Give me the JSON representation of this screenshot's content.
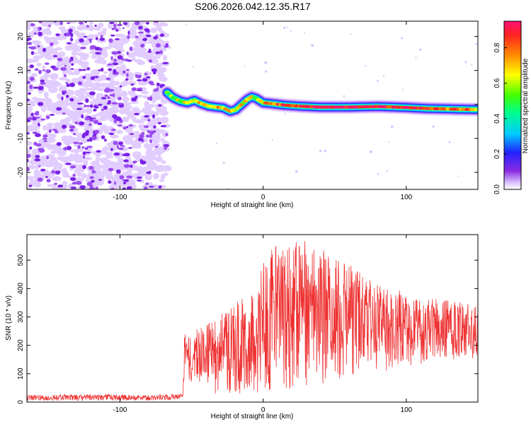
{
  "chart_data": [
    {
      "type": "heatmap",
      "title": "S206.2026.042.12.35.R17",
      "xlabel": "Height of straight line (km)",
      "ylabel": "Frequency (Hz)",
      "xlim": [
        -165,
        150
      ],
      "ylim": [
        -25,
        24.5
      ],
      "x_ticks": [
        -100,
        0,
        100
      ],
      "x_tick_labels": [
        "-100",
        "0",
        "100"
      ],
      "y_ticks": [
        -20,
        -10,
        0,
        10,
        20
      ],
      "y_tick_labels": [
        "-20",
        "-10",
        "0",
        "10",
        "20"
      ],
      "noise_region_x": [
        -165,
        -67
      ],
      "signal_ridge": {
        "x": [
          -67,
          -63,
          -58,
          -53,
          -48,
          -43,
          -38,
          -33,
          -28,
          -23,
          -19,
          -15,
          -11,
          -8,
          -5,
          0,
          5,
          15,
          25,
          40,
          60,
          80,
          100,
          115,
          125,
          135,
          150
        ],
        "freq": [
          3.5,
          2.0,
          1.0,
          0.5,
          1.2,
          0.2,
          -0.5,
          -0.8,
          -1.0,
          -2.0,
          -1.5,
          0.0,
          1.5,
          2.2,
          1.8,
          0.5,
          0.3,
          -0.2,
          -0.5,
          -0.8,
          -0.8,
          -0.6,
          -0.9,
          -1.2,
          -1.3,
          -1.4,
          -1.5
        ],
        "amplitude": [
          0.45,
          0.55,
          0.6,
          0.62,
          0.65,
          0.7,
          0.72,
          0.75,
          0.72,
          0.7,
          0.68,
          0.65,
          0.62,
          0.6,
          0.62,
          0.7,
          0.78,
          0.85,
          0.9,
          0.95,
          0.95,
          0.92,
          0.88,
          0.85,
          0.82,
          0.8,
          0.75
        ]
      },
      "colorbar": {
        "label": "Normalized spectral amplitude",
        "range": [
          0,
          0.95
        ],
        "ticks": [
          0.0,
          0.2,
          0.4,
          0.6,
          0.8
        ],
        "tick_labels": [
          "0.0",
          "0.2",
          "0.4",
          "0.6",
          "0.8"
        ]
      }
    },
    {
      "type": "line",
      "xlabel": "Height of straight line (km)",
      "ylabel": "SNR (10 * v/v)",
      "xlim": [
        -165,
        150
      ],
      "ylim": [
        0,
        590
      ],
      "x_ticks": [
        -100,
        0,
        100
      ],
      "x_tick_labels": [
        "-100",
        "0",
        "100"
      ],
      "y_ticks": [
        0,
        100,
        200,
        300,
        400,
        500
      ],
      "y_tick_labels": [
        "0",
        "100",
        "200",
        "300",
        "400",
        "500"
      ],
      "series": [
        {
          "name": "SNR",
          "color": "#ee3333",
          "envelope_x": [
            -165,
            -120,
            -80,
            -56,
            -55,
            -45,
            -35,
            -25,
            -15,
            -5,
            0,
            10,
            20,
            30,
            40,
            50,
            60,
            70,
            80,
            90,
            100,
            110,
            120,
            130,
            140,
            150
          ],
          "envelope_max": [
            25,
            28,
            25,
            30,
            250,
            260,
            300,
            320,
            370,
            420,
            500,
            560,
            575,
            570,
            550,
            520,
            490,
            450,
            420,
            400,
            390,
            380,
            370,
            360,
            350,
            340
          ],
          "envelope_min": [
            5,
            5,
            5,
            8,
            60,
            40,
            30,
            30,
            20,
            20,
            20,
            30,
            40,
            50,
            60,
            70,
            80,
            90,
            100,
            110,
            120,
            130,
            150,
            150,
            150,
            150
          ]
        }
      ]
    }
  ]
}
